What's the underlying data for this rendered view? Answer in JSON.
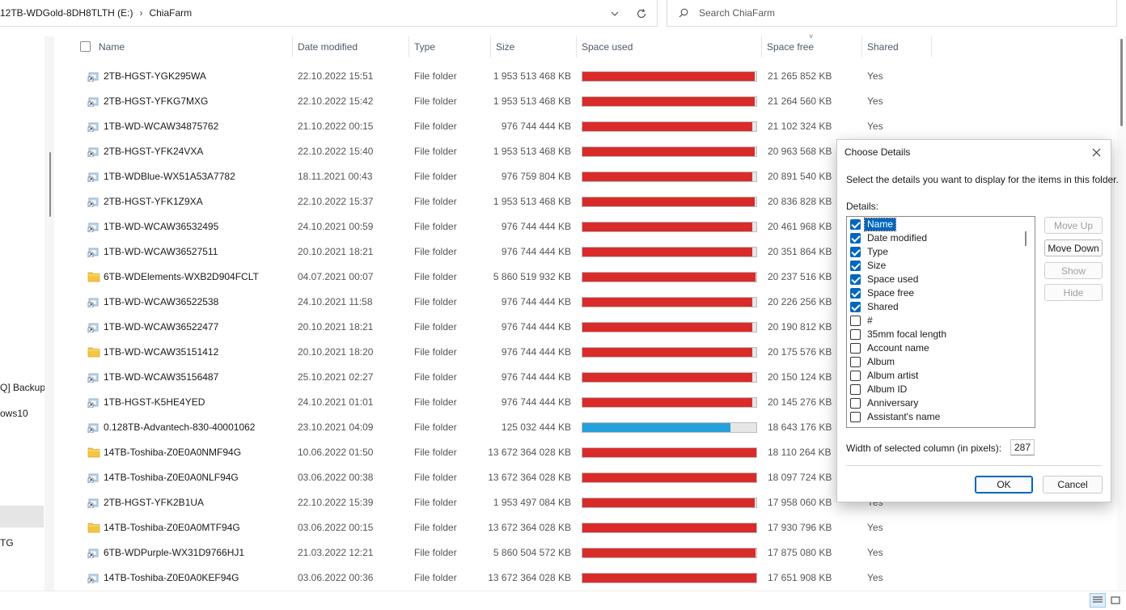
{
  "address": {
    "breadcrumbs": [
      "12TB-WDGold-8DH8TLTH (E:)",
      "ChiaFarm"
    ],
    "dropdown_icon": "chevron-down-icon",
    "refresh_icon": "refresh-icon"
  },
  "search": {
    "placeholder": "Search ChiaFarm",
    "icon": "search-icon"
  },
  "nav": {
    "items": [
      "Q] Backup",
      "ows10",
      "TG"
    ]
  },
  "columns": [
    "Name",
    "Date modified",
    "Type",
    "Size",
    "Space used",
    "Space free",
    "Shared"
  ],
  "colors": {
    "bar_red": "#da2b2b",
    "bar_blue": "#26a0da",
    "accent": "#0067c0",
    "folder": "#f5c542"
  },
  "rows": [
    {
      "name": "2TB-HGST-YGK295WA",
      "date": "22.10.2022 15:51",
      "type": "File folder",
      "size": "1 953 513 468 KB",
      "free": "21 265 852 KB",
      "shared": "Yes",
      "icon": "folder-shortcut-icon",
      "used_fraction": 0.989,
      "bar_color": "red"
    },
    {
      "name": "2TB-HGST-YFKG7MXG",
      "date": "22.10.2022 15:42",
      "type": "File folder",
      "size": "1 953 513 468 KB",
      "free": "21 264 560 KB",
      "shared": "Yes",
      "icon": "folder-shortcut-icon",
      "used_fraction": 0.989,
      "bar_color": "red"
    },
    {
      "name": "1TB-WD-WCAW34875762",
      "date": "21.10.2022 00:15",
      "type": "File folder",
      "size": "976 744 444 KB",
      "free": "21 102 324 KB",
      "shared": "Yes",
      "icon": "folder-shortcut-icon",
      "used_fraction": 0.978,
      "bar_color": "red"
    },
    {
      "name": "2TB-HGST-YFK24VXA",
      "date": "22.10.2022 15:40",
      "type": "File folder",
      "size": "1 953 513 468 KB",
      "free": "20 963 568 KB",
      "shared": "",
      "icon": "folder-shortcut-icon",
      "used_fraction": 0.989,
      "bar_color": "red"
    },
    {
      "name": "1TB-WDBlue-WX51A53A7782",
      "date": "18.11.2021 00:43",
      "type": "File folder",
      "size": "976 759 804 KB",
      "free": "20 891 540 KB",
      "shared": "",
      "icon": "folder-shortcut-icon",
      "used_fraction": 0.979,
      "bar_color": "red"
    },
    {
      "name": "2TB-HGST-YFK1Z9XA",
      "date": "22.10.2022 15:37",
      "type": "File folder",
      "size": "1 953 513 468 KB",
      "free": "20 836 828 KB",
      "shared": "",
      "icon": "folder-shortcut-icon",
      "used_fraction": 0.989,
      "bar_color": "red"
    },
    {
      "name": "1TB-WD-WCAW36532495",
      "date": "24.10.2021 00:59",
      "type": "File folder",
      "size": "976 744 444 KB",
      "free": "20 461 968 KB",
      "shared": "",
      "icon": "folder-shortcut-icon",
      "used_fraction": 0.979,
      "bar_color": "red"
    },
    {
      "name": "1TB-WD-WCAW36527511",
      "date": "20.10.2021 18:21",
      "type": "File folder",
      "size": "976 744 444 KB",
      "free": "20 351 864 KB",
      "shared": "",
      "icon": "folder-shortcut-icon",
      "used_fraction": 0.979,
      "bar_color": "red"
    },
    {
      "name": "6TB-WDElements-WXB2D904FCLT",
      "date": "04.07.2021 00:07",
      "type": "File folder",
      "size": "5 860 519 932 KB",
      "free": "20 237 516 KB",
      "shared": "",
      "icon": "folder-icon",
      "used_fraction": 0.996,
      "bar_color": "red"
    },
    {
      "name": "1TB-WD-WCAW36522538",
      "date": "24.10.2021 11:58",
      "type": "File folder",
      "size": "976 744 444 KB",
      "free": "20 226 256 KB",
      "shared": "",
      "icon": "folder-shortcut-icon",
      "used_fraction": 0.979,
      "bar_color": "red"
    },
    {
      "name": "1TB-WD-WCAW36522477",
      "date": "20.10.2021 18:21",
      "type": "File folder",
      "size": "976 744 444 KB",
      "free": "20 190 812 KB",
      "shared": "",
      "icon": "folder-shortcut-icon",
      "used_fraction": 0.979,
      "bar_color": "red"
    },
    {
      "name": "1TB-WD-WCAW35151412",
      "date": "20.10.2021 18:20",
      "type": "File folder",
      "size": "976 744 444 KB",
      "free": "20 175 576 KB",
      "shared": "",
      "icon": "folder-icon",
      "used_fraction": 0.979,
      "bar_color": "red"
    },
    {
      "name": "1TB-WD-WCAW35156487",
      "date": "25.10.2021 02:27",
      "type": "File folder",
      "size": "976 744 444 KB",
      "free": "20 150 124 KB",
      "shared": "",
      "icon": "folder-shortcut-icon",
      "used_fraction": 0.979,
      "bar_color": "red"
    },
    {
      "name": "1TB-HGST-K5HE4YED",
      "date": "24.10.2021 01:01",
      "type": "File folder",
      "size": "976 744 444 KB",
      "free": "20 145 276 KB",
      "shared": "",
      "icon": "folder-shortcut-icon",
      "used_fraction": 0.979,
      "bar_color": "red"
    },
    {
      "name": "0.128TB-Advantech-830-40001062",
      "date": "23.10.2021 04:09",
      "type": "File folder",
      "size": "125 032 444 KB",
      "free": "18 643 176 KB",
      "shared": "",
      "icon": "folder-shortcut-icon",
      "used_fraction": 0.851,
      "bar_color": "blue"
    },
    {
      "name": "14TB-Toshiba-Z0E0A0NMF94G",
      "date": "10.06.2022 01:50",
      "type": "File folder",
      "size": "13 672 364 028 KB",
      "free": "18 110 264 KB",
      "shared": "",
      "icon": "folder-icon",
      "used_fraction": 0.998,
      "bar_color": "red"
    },
    {
      "name": "14TB-Toshiba-Z0E0A0NLF94G",
      "date": "03.06.2022 00:38",
      "type": "File folder",
      "size": "13 672 364 028 KB",
      "free": "18 097 724 KB",
      "shared": "",
      "icon": "folder-shortcut-icon",
      "used_fraction": 0.998,
      "bar_color": "red"
    },
    {
      "name": "2TB-HGST-YFK2B1UA",
      "date": "22.10.2022 15:39",
      "type": "File folder",
      "size": "1 953 497 084 KB",
      "free": "17 958 060 KB",
      "shared": "Yes",
      "icon": "folder-shortcut-icon",
      "used_fraction": 0.99,
      "bar_color": "red"
    },
    {
      "name": "14TB-Toshiba-Z0E0A0MTF94G",
      "date": "03.06.2022 00:15",
      "type": "File folder",
      "size": "13 672 364 028 KB",
      "free": "17 930 796 KB",
      "shared": "Yes",
      "icon": "folder-icon",
      "used_fraction": 0.998,
      "bar_color": "red"
    },
    {
      "name": "6TB-WDPurple-WX31D9766HJ1",
      "date": "21.03.2022 12:21",
      "type": "File folder",
      "size": "5 860 504 572 KB",
      "free": "17 875 080 KB",
      "shared": "Yes",
      "icon": "folder-shortcut-icon",
      "used_fraction": 0.996,
      "bar_color": "red"
    },
    {
      "name": "14TB-Toshiba-Z0E0A0KEF94G",
      "date": "03.06.2022 00:36",
      "type": "File folder",
      "size": "13 672 364 028 KB",
      "free": "17 651 908 KB",
      "shared": "Yes",
      "icon": "folder-shortcut-icon",
      "used_fraction": 0.998,
      "bar_color": "red"
    }
  ],
  "dialog": {
    "title": "Choose Details",
    "instruction": "Select the details you want to display for the items in this folder.",
    "details_label": "Details:",
    "items": [
      {
        "label": "Name",
        "checked": true,
        "selected": true
      },
      {
        "label": "Date modified",
        "checked": true
      },
      {
        "label": "Type",
        "checked": true
      },
      {
        "label": "Size",
        "checked": true
      },
      {
        "label": "Space used",
        "checked": true
      },
      {
        "label": "Space free",
        "checked": true
      },
      {
        "label": "Shared",
        "checked": true
      },
      {
        "label": "#",
        "checked": false
      },
      {
        "label": "35mm focal length",
        "checked": false
      },
      {
        "label": "Account name",
        "checked": false
      },
      {
        "label": "Album",
        "checked": false
      },
      {
        "label": "Album artist",
        "checked": false
      },
      {
        "label": "Album ID",
        "checked": false
      },
      {
        "label": "Anniversary",
        "checked": false
      },
      {
        "label": "Assistant's name",
        "checked": false
      }
    ],
    "buttons": {
      "move_up": "Move Up",
      "move_down": "Move Down",
      "show": "Show",
      "hide": "Hide",
      "ok": "OK",
      "cancel": "Cancel"
    },
    "width_label": "Width of selected column (in pixels):",
    "width_value": "287",
    "close_icon": "close-icon"
  },
  "status": {
    "details_view_icon": "details-view-icon",
    "tiles_view_icon": "large-icons-view-icon"
  }
}
